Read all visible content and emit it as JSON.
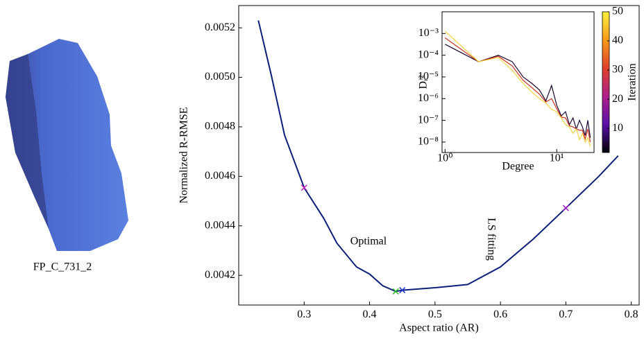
{
  "caption": "FP_C_731_2",
  "chart_data": [
    {
      "type": "line",
      "xlabel": "Aspect ratio (AR)",
      "ylabel": "Normalized R-RMSE",
      "x": [
        0.23,
        0.25,
        0.27,
        0.3,
        0.33,
        0.35,
        0.38,
        0.4,
        0.42,
        0.44,
        0.45,
        0.5,
        0.55,
        0.6,
        0.65,
        0.7,
        0.75,
        0.78
      ],
      "series": [
        {
          "color": "#0a1f7a",
          "values": [
            0.00523,
            0.005006,
            0.004767,
            0.004554,
            0.00443,
            0.00433,
            0.004234,
            0.004205,
            0.004158,
            0.004135,
            0.00414,
            0.00415,
            0.004163,
            0.004234,
            0.004346,
            0.004472,
            0.004599,
            0.004683
          ]
        }
      ],
      "markers": [
        {
          "x": 0.3,
          "y": 0.004554,
          "color": "#c020c0"
        },
        {
          "x": 0.44,
          "y": 0.004135,
          "color": "#22bb22"
        },
        {
          "x": 0.45,
          "y": 0.00414,
          "color": "#2233cc"
        },
        {
          "x": 0.7,
          "y": 0.004472,
          "color": "#a020c0"
        }
      ],
      "annotations": [
        "Optimal",
        "LS fitting"
      ],
      "xlim": [
        0.2,
        0.812
      ],
      "ylim": [
        0.00408,
        0.00529
      ],
      "xticks": [
        0.3,
        0.4,
        0.5,
        0.6,
        0.7,
        0.8
      ],
      "yticks": [
        0.0042,
        0.0044,
        0.0046,
        0.0048,
        {
          "value": 0.005,
          "label": "0.0050"
        },
        0.0052
      ]
    },
    {
      "type": "line",
      "xlabel": "Degree",
      "ylabel": "Dᵣ²",
      "log_x": true,
      "log_y": true,
      "x": [
        1,
        2,
        3,
        4,
        5,
        6,
        7,
        8,
        9,
        10,
        11,
        12,
        13,
        14,
        15,
        16,
        17,
        18,
        19,
        20
      ],
      "series": [
        {
          "color": "#1a0530",
          "values": [
            0.00032,
            5e-05,
            0.0001,
            5e-05,
            1e-05,
            5e-06,
            2.5e-06,
            7.9e-07,
            4e-06,
            5e-07,
            1.6e-07,
            2.5e-07,
            6.3e-08,
            1.3e-07,
            4e-08,
            1e-07,
            5e-08,
            2e-08,
            1e-07,
            1.6e-08
          ]
        },
        {
          "color": "#c8301e",
          "values": [
            0.00063,
            5e-05,
            9e-05,
            3.2e-05,
            7e-06,
            3.2e-06,
            1.6e-06,
            7e-07,
            1e-06,
            3.5e-07,
            1.4e-07,
            1.3e-07,
            5.6e-08,
            5e-08,
            4e-08,
            3.5e-08,
            3.5e-08,
            1.4e-08,
            4e-08,
            1e-08
          ]
        },
        {
          "color": "#f7d23a",
          "values": [
            0.00126,
            5e-05,
            7.9e-05,
            2e-05,
            5e-06,
            2e-06,
            1e-06,
            6.3e-07,
            3.2e-07,
            2.5e-07,
            1.3e-07,
            6.3e-08,
            5e-08,
            2.5e-08,
            4e-08,
            1.3e-08,
            2.5e-08,
            1e-08,
            1.6e-08,
            6.3e-09
          ]
        }
      ],
      "xlim": [
        0.94,
        21.6
      ],
      "ylim": [
        3.3e-09,
        0.01
      ],
      "xticks": [
        {
          "value": 1,
          "label": "10⁰"
        },
        {
          "value": 10,
          "label": "10¹"
        }
      ],
      "yticks": [
        {
          "value": 1e-08,
          "label": "10⁻⁸"
        },
        {
          "value": 1e-07,
          "label": "10⁻⁷"
        },
        {
          "value": 1e-06,
          "label": "10⁻⁶"
        },
        {
          "value": 1e-05,
          "label": "10⁻⁵"
        },
        {
          "value": 0.0001,
          "label": "10⁻⁴"
        },
        {
          "value": 0.001,
          "label": "10⁻³"
        }
      ],
      "colorbar": {
        "label": "Iteration",
        "lim": [
          1.7,
          50
        ],
        "ticks": [
          10,
          20,
          30,
          40,
          50
        ],
        "colors": [
          "#000004",
          "#5a10a8",
          "#b0208a",
          "#e0402a",
          "#f89a18",
          "#fcf040"
        ]
      }
    }
  ]
}
